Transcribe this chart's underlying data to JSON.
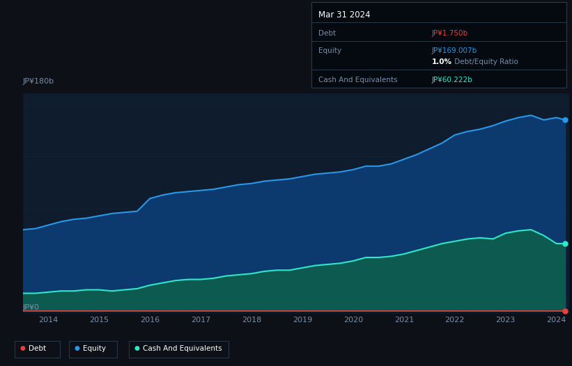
{
  "background_color": "#0d1117",
  "plot_bg_color": "#0e1c2e",
  "grid_color": "#1a2a3a",
  "ylabel_top": "JP¥180b",
  "ylabel_bottom": "JP¥0",
  "x_years": [
    2013.5,
    2013.75,
    2014,
    2014.25,
    2014.5,
    2014.75,
    2015,
    2015.25,
    2015.5,
    2015.75,
    2016,
    2016.25,
    2016.5,
    2016.75,
    2017,
    2017.25,
    2017.5,
    2017.75,
    2018,
    2018.25,
    2018.5,
    2018.75,
    2019,
    2019.25,
    2019.5,
    2019.75,
    2020,
    2020.25,
    2020.5,
    2020.75,
    2021,
    2021.25,
    2021.5,
    2021.75,
    2022,
    2022.25,
    2022.5,
    2022.75,
    2023,
    2023.25,
    2023.5,
    2023.75,
    2024,
    2024.17
  ],
  "equity_values": [
    72,
    73,
    76,
    79,
    81,
    82,
    84,
    86,
    87,
    88,
    99,
    102,
    104,
    105,
    106,
    107,
    109,
    111,
    112,
    114,
    115,
    116,
    118,
    120,
    121,
    122,
    124,
    127,
    127,
    129,
    133,
    137,
    142,
    147,
    154,
    157,
    159,
    162,
    166,
    169,
    171,
    167,
    169,
    167
  ],
  "cash_values": [
    17,
    17,
    18,
    19,
    19,
    20,
    20,
    19,
    20,
    21,
    24,
    26,
    28,
    29,
    29,
    30,
    32,
    33,
    34,
    36,
    37,
    37,
    39,
    41,
    42,
    43,
    45,
    48,
    48,
    49,
    51,
    54,
    57,
    60,
    62,
    64,
    65,
    64,
    69,
    71,
    72,
    67,
    60,
    60
  ],
  "debt_values": [
    1.75,
    1.75,
    1.75,
    1.75,
    1.75,
    1.75,
    1.75,
    1.75,
    1.75,
    1.75,
    1.75,
    1.75,
    1.75,
    1.75,
    1.75,
    1.75,
    1.75,
    1.75,
    1.75,
    1.75,
    1.75,
    1.75,
    1.75,
    1.75,
    1.75,
    1.75,
    1.75,
    1.75,
    1.75,
    1.75,
    1.75,
    1.75,
    1.75,
    1.75,
    1.75,
    1.75,
    1.75,
    1.75,
    1.75,
    1.75,
    1.75,
    1.75,
    1.75,
    1.75
  ],
  "equity_color": "#2998e8",
  "equity_fill_top": "#0d3a6e",
  "equity_fill_bottom": "#0a2040",
  "cash_color": "#2ee8c8",
  "cash_fill_top": "#0d5a50",
  "cash_fill_bottom": "#082820",
  "debt_color": "#e84040",
  "x_ticks": [
    2014,
    2015,
    2016,
    2017,
    2018,
    2019,
    2020,
    2021,
    2022,
    2023,
    2024
  ],
  "x_tick_labels": [
    "2014",
    "2015",
    "2016",
    "2017",
    "2018",
    "2019",
    "2020",
    "2021",
    "2022",
    "2023",
    "2024"
  ],
  "ylim": [
    0,
    190
  ],
  "tooltip_date": "Mar 31 2024",
  "tooltip_debt_value": "JP¥1.750b",
  "tooltip_equity_value": "JP¥169.007b",
  "tooltip_ratio": "1.0%",
  "tooltip_ratio_label": "Debt/Equity Ratio",
  "tooltip_cash_value": "JP¥60.222b",
  "legend_labels": [
    "Debt",
    "Equity",
    "Cash And Equivalents"
  ],
  "legend_colors": [
    "#e84040",
    "#2998e8",
    "#2ee8c8"
  ]
}
